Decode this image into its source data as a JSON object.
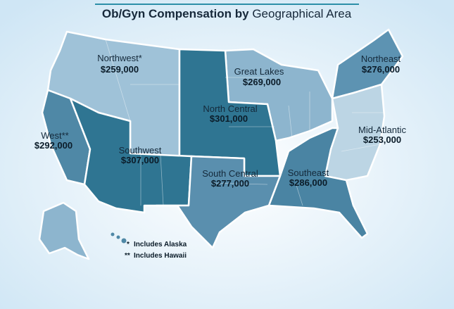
{
  "title": {
    "bold": "Ob/Gyn Compensation by",
    "regular": "Geographical Area"
  },
  "regions": [
    {
      "name": "Northwest*",
      "value": "$259,000"
    },
    {
      "name": "Great Lakes",
      "value": "$269,000"
    },
    {
      "name": "Northeast",
      "value": "$276,000"
    },
    {
      "name": "North Central",
      "value": "$301,000"
    },
    {
      "name": "West**",
      "value": "$292,000"
    },
    {
      "name": "Mid-Atlantic",
      "value": "$253,000"
    },
    {
      "name": "Southwest",
      "value": "$307,000"
    },
    {
      "name": "South Central",
      "value": "$277,000"
    },
    {
      "name": "Southeast",
      "value": "$286,000"
    }
  ],
  "footnotes": [
    {
      "marker": "*",
      "text": "Includes Alaska"
    },
    {
      "marker": "**",
      "text": "Includes Hawaii"
    }
  ]
}
